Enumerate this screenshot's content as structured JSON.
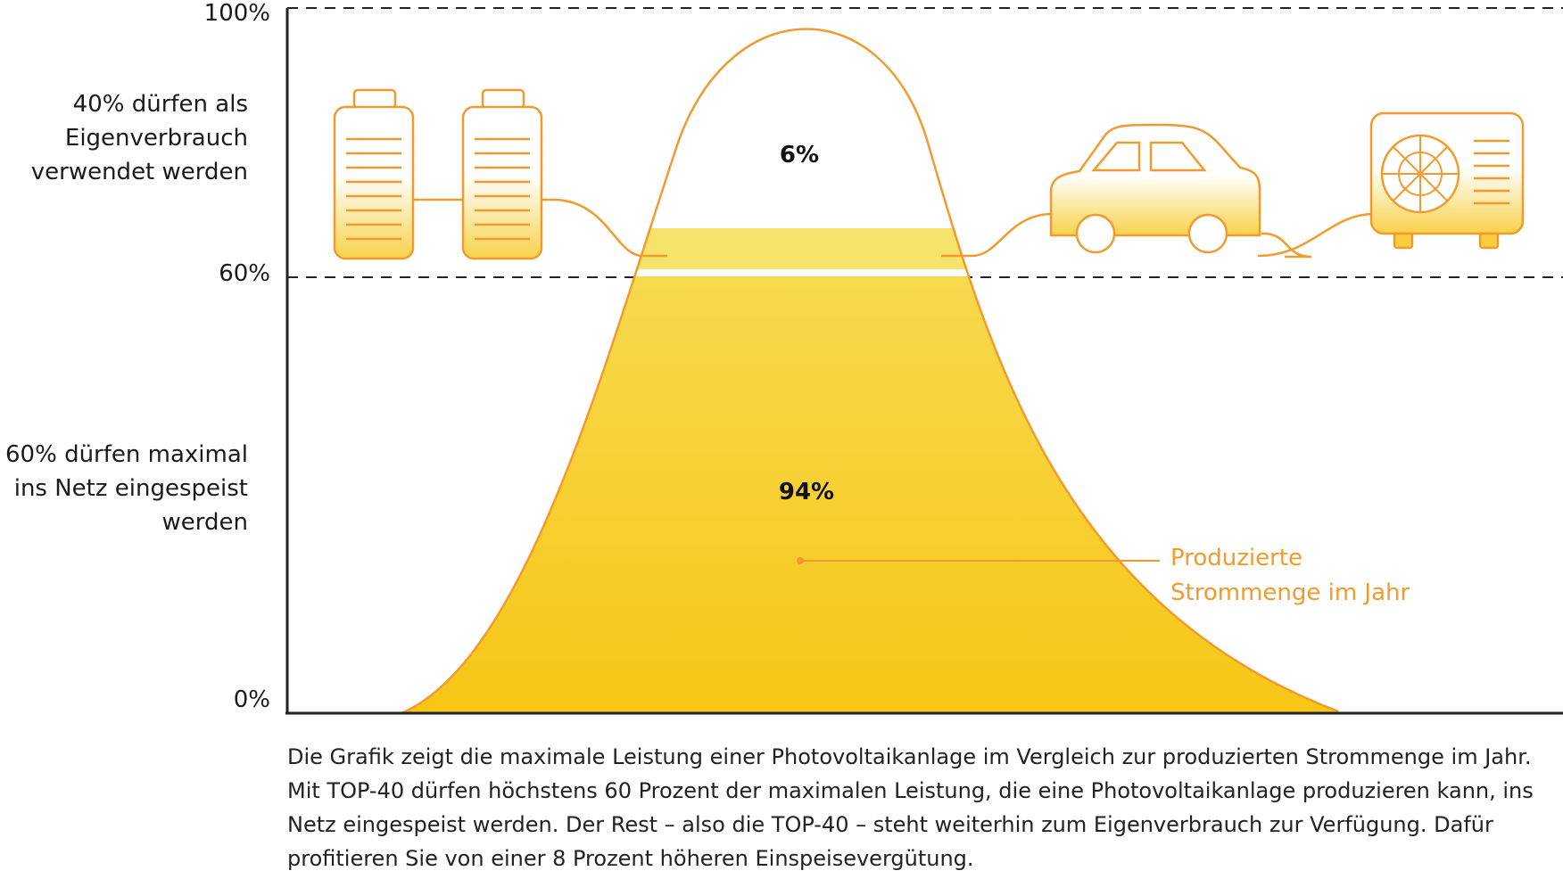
{
  "chart_data": {
    "type": "area",
    "yticks": [
      "100%",
      "60%",
      "0%"
    ],
    "ylim": [
      0,
      100
    ],
    "grid": "dashed lines at 60% and 100%",
    "thresholds": [
      60,
      100
    ],
    "y_annotations": {
      "upper": [
        "40% dürfen als",
        "Eigenverbrauch",
        "verwendet werden"
      ],
      "lower": [
        "60% dürfen maximal",
        "ins Netz eingespeist",
        "werden"
      ]
    },
    "areas": [
      {
        "label": "6%",
        "value": 6,
        "band": [
          60,
          70
        ]
      },
      {
        "label": "94%",
        "value": 94,
        "band": [
          0,
          60
        ]
      }
    ],
    "curve": {
      "peak": 97,
      "label_lines": [
        "Produzierte",
        "Strommenge im Jahr"
      ]
    },
    "icons": [
      "battery-icon",
      "battery-icon",
      "car-icon",
      "heat-pump-icon"
    ]
  },
  "caption": "Die Grafik zeigt die maximale Leistung einer Photovoltaikanlage im Vergleich zur produzierten Strommenge im Jahr. Mit TOP-40 dürfen höchstens 60 Prozent der maximalen Leistung, die eine Photovoltaikanlage produzieren kann, ins Netz eingespeist werden. Der Rest – also die TOP-40 – steht weiterhin zum Eigenverbrauch zur Verfügung. Dafür profitieren Sie von einer 8 Prozent höheren Einspeisevergütung.",
  "colors": {
    "curve": "#f29a2e",
    "fill_top": "#f7e26a",
    "fill_bottom": "#f7c518",
    "axis": "#222222"
  }
}
